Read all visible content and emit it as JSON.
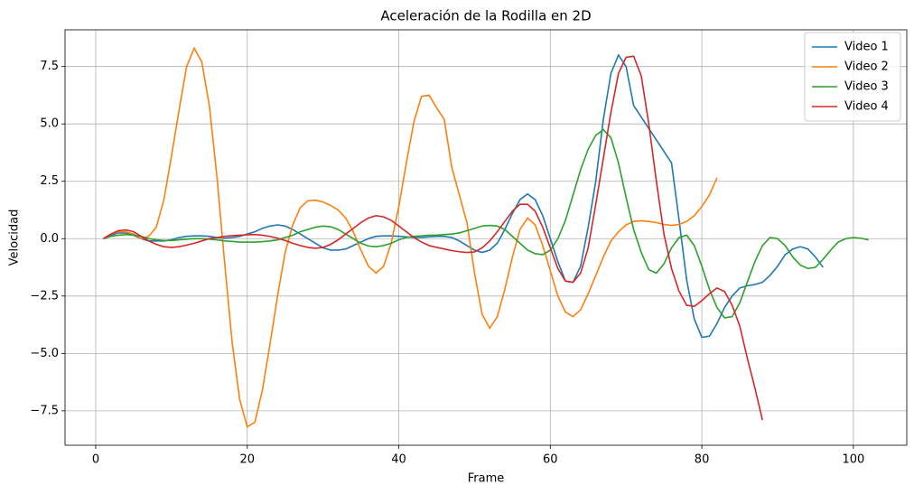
{
  "chart_data": {
    "type": "line",
    "title": "Aceleración de la Rodilla en 2D",
    "x_label": "Frame",
    "y_label": "Velocidad",
    "xlim": [
      -4.05,
      107.05
    ],
    "ylim": [
      -9.0,
      9.1
    ],
    "xticks": [
      0,
      20,
      40,
      60,
      80,
      100
    ],
    "yticks": [
      {
        "value": -7.5,
        "label": "−7.5"
      },
      {
        "value": -5,
        "label": "−5.0"
      },
      {
        "value": -2.5,
        "label": "−2.5"
      },
      {
        "value": 0,
        "label": "0.0"
      },
      {
        "value": 2.5,
        "label": "2.5"
      },
      {
        "value": 5,
        "label": "5.0"
      },
      {
        "value": 7.5,
        "label": "7.5"
      }
    ],
    "grid": true,
    "legend": "upper right",
    "series": [
      {
        "name": "Video 1",
        "color": "#1f77b4",
        "x": [
          1,
          2,
          3,
          4,
          5,
          6,
          7,
          8,
          9,
          10,
          11,
          12,
          13,
          14,
          15,
          16,
          17,
          18,
          19,
          20,
          21,
          22,
          23,
          24,
          25,
          26,
          27,
          28,
          29,
          30,
          31,
          32,
          33,
          34,
          35,
          36,
          37,
          38,
          39,
          40,
          41,
          42,
          43,
          44,
          45,
          46,
          47,
          48,
          49,
          50,
          51,
          52,
          53,
          54,
          55,
          56,
          57,
          58,
          59,
          60,
          61,
          62,
          63,
          64,
          65,
          66,
          67,
          68,
          69,
          70,
          71,
          72,
          73,
          74,
          75,
          76,
          77,
          78,
          79,
          80,
          81,
          82,
          83,
          84,
          85,
          86,
          87,
          88,
          89,
          90,
          91,
          92,
          93,
          94,
          95,
          96
        ],
        "values": [
          0,
          0.15,
          0.25,
          0.25,
          0.15,
          0,
          -0.1,
          -0.1,
          -0.1,
          -0.05,
          0.05,
          0.1,
          0.12,
          0.12,
          0.1,
          0.05,
          0.02,
          0.05,
          0.1,
          0.2,
          0.3,
          0.45,
          0.55,
          0.6,
          0.55,
          0.4,
          0.2,
          0,
          -0.2,
          -0.4,
          -0.5,
          -0.5,
          -0.45,
          -0.3,
          -0.15,
          0,
          0.1,
          0.12,
          0.12,
          0.1,
          0.08,
          0.05,
          0.05,
          0.08,
          0.1,
          0.1,
          0.05,
          -0.1,
          -0.3,
          -0.5,
          -0.6,
          -0.5,
          -0.2,
          0.4,
          1.1,
          1.7,
          1.95,
          1.7,
          1.0,
          0,
          -1.0,
          -1.85,
          -1.9,
          -1.2,
          0.5,
          2.5,
          5.2,
          7.2,
          8.0,
          7.5,
          5.8,
          5.3,
          4.8,
          4.3,
          3.8,
          3.3,
          0.8,
          -1.8,
          -3.5,
          -4.3,
          -4.25,
          -3.7,
          -3.0,
          -2.5,
          -2.15,
          -2.05,
          -2.0,
          -1.9,
          -1.6,
          -1.2,
          -0.7,
          -0.45,
          -0.35,
          -0.45,
          -0.8,
          -1.25
        ]
      },
      {
        "name": "Video 2",
        "color": "#ff7f0e",
        "x": [
          1,
          2,
          3,
          4,
          5,
          6,
          7,
          8,
          9,
          10,
          11,
          12,
          13,
          14,
          15,
          16,
          17,
          18,
          19,
          20,
          21,
          22,
          23,
          24,
          25,
          26,
          27,
          28,
          29,
          30,
          31,
          32,
          33,
          34,
          35,
          36,
          37,
          38,
          39,
          40,
          41,
          42,
          43,
          44,
          45,
          46,
          47,
          48,
          49,
          50,
          51,
          52,
          53,
          54,
          55,
          56,
          57,
          58,
          59,
          60,
          61,
          62,
          63,
          64,
          65,
          66,
          67,
          68,
          69,
          70,
          71,
          72,
          73,
          74,
          75,
          76,
          77,
          78,
          79,
          80,
          81,
          82
        ],
        "values": [
          0,
          0.2,
          0.3,
          0.3,
          0.2,
          0,
          0.1,
          0.5,
          1.7,
          3.6,
          5.6,
          7.5,
          8.3,
          7.7,
          5.8,
          2.7,
          -1,
          -4.5,
          -7,
          -8.2,
          -8,
          -6.6,
          -4.6,
          -2.5,
          -0.6,
          0.6,
          1.35,
          1.65,
          1.68,
          1.6,
          1.45,
          1.25,
          0.9,
          0.3,
          -0.5,
          -1.2,
          -1.5,
          -1.2,
          -0.2,
          1.4,
          3.3,
          5.1,
          6.2,
          6.25,
          5.7,
          5.2,
          3.1,
          1.9,
          0.7,
          -1.5,
          -3.3,
          -3.9,
          -3.4,
          -2.2,
          -0.8,
          0.4,
          0.9,
          0.6,
          -0.3,
          -1.4,
          -2.5,
          -3.2,
          -3.4,
          -3.1,
          -2.4,
          -1.6,
          -0.8,
          -0.1,
          0.3,
          0.6,
          0.75,
          0.78,
          0.75,
          0.7,
          0.62,
          0.58,
          0.62,
          0.75,
          1.0,
          1.4,
          1.9,
          2.65
        ]
      },
      {
        "name": "Video 3",
        "color": "#2ca02c",
        "x": [
          1,
          2,
          3,
          4,
          5,
          6,
          7,
          8,
          9,
          10,
          11,
          12,
          13,
          14,
          15,
          16,
          17,
          18,
          19,
          20,
          21,
          22,
          23,
          24,
          25,
          26,
          27,
          28,
          29,
          30,
          31,
          32,
          33,
          34,
          35,
          36,
          37,
          38,
          39,
          40,
          41,
          42,
          43,
          44,
          45,
          46,
          47,
          48,
          49,
          50,
          51,
          52,
          53,
          54,
          55,
          56,
          57,
          58,
          59,
          60,
          61,
          62,
          63,
          64,
          65,
          66,
          67,
          68,
          69,
          70,
          71,
          72,
          73,
          74,
          75,
          76,
          77,
          78,
          79,
          80,
          81,
          82,
          83,
          84,
          85,
          86,
          87,
          88,
          89,
          90,
          91,
          92,
          93,
          94,
          95,
          96,
          97,
          98,
          99,
          100,
          101,
          102
        ],
        "values": [
          0,
          0.1,
          0.15,
          0.18,
          0.15,
          0.1,
          0,
          -0.05,
          -0.08,
          -0.08,
          -0.05,
          -0.02,
          0,
          0,
          -0.02,
          -0.05,
          -0.1,
          -0.12,
          -0.15,
          -0.15,
          -0.15,
          -0.13,
          -0.1,
          -0.05,
          0.05,
          0.15,
          0.3,
          0.4,
          0.5,
          0.55,
          0.52,
          0.4,
          0.2,
          0,
          -0.2,
          -0.32,
          -0.35,
          -0.3,
          -0.2,
          -0.05,
          0.05,
          0.1,
          0.12,
          0.15,
          0.15,
          0.18,
          0.2,
          0.25,
          0.35,
          0.45,
          0.55,
          0.58,
          0.55,
          0.4,
          0.1,
          -0.2,
          -0.5,
          -0.65,
          -0.7,
          -0.5,
          0,
          0.8,
          1.9,
          3.0,
          3.9,
          4.5,
          4.75,
          4.4,
          3.3,
          1.8,
          0.4,
          -0.6,
          -1.35,
          -1.5,
          -1.1,
          -0.4,
          0.05,
          0.15,
          -0.3,
          -1.2,
          -2.2,
          -3.0,
          -3.45,
          -3.4,
          -2.8,
          -1.9,
          -1.0,
          -0.3,
          0.05,
          0,
          -0.3,
          -0.8,
          -1.15,
          -1.3,
          -1.25,
          -0.9,
          -0.5,
          -0.15,
          0,
          0.05,
          0.02,
          -0.05
        ]
      },
      {
        "name": "Video 4",
        "color": "#d62728",
        "x": [
          1,
          2,
          3,
          4,
          5,
          6,
          7,
          8,
          9,
          10,
          11,
          12,
          13,
          14,
          15,
          16,
          17,
          18,
          19,
          20,
          21,
          22,
          23,
          24,
          25,
          26,
          27,
          28,
          29,
          30,
          31,
          32,
          33,
          34,
          35,
          36,
          37,
          38,
          39,
          40,
          41,
          42,
          43,
          44,
          45,
          46,
          47,
          48,
          49,
          50,
          51,
          52,
          53,
          54,
          55,
          56,
          57,
          58,
          59,
          60,
          61,
          62,
          63,
          64,
          65,
          66,
          67,
          68,
          69,
          70,
          71,
          72,
          73,
          74,
          75,
          76,
          77,
          78,
          79,
          80,
          81,
          82,
          83,
          84,
          85,
          86,
          87,
          88
        ],
        "values": [
          0,
          0.2,
          0.35,
          0.38,
          0.3,
          0.1,
          -0.1,
          -0.25,
          -0.35,
          -0.38,
          -0.35,
          -0.28,
          -0.2,
          -0.1,
          0,
          0.05,
          0.1,
          0.13,
          0.15,
          0.17,
          0.18,
          0.15,
          0.1,
          0.02,
          -0.08,
          -0.2,
          -0.3,
          -0.38,
          -0.42,
          -0.38,
          -0.25,
          -0.05,
          0.2,
          0.45,
          0.7,
          0.9,
          1.0,
          0.95,
          0.8,
          0.55,
          0.3,
          0.05,
          -0.15,
          -0.3,
          -0.38,
          -0.45,
          -0.52,
          -0.57,
          -0.6,
          -0.58,
          -0.4,
          -0.1,
          0.3,
          0.75,
          1.2,
          1.5,
          1.5,
          1.2,
          0.5,
          -0.4,
          -1.3,
          -1.85,
          -1.9,
          -1.5,
          -0.4,
          1.5,
          3.5,
          5.5,
          7.2,
          7.9,
          7.95,
          7.1,
          5.0,
          2.5,
          0.2,
          -1.3,
          -2.3,
          -2.9,
          -2.95,
          -2.7,
          -2.4,
          -2.15,
          -2.3,
          -2.9,
          -3.8,
          -5.2,
          -6.5,
          -7.9
        ]
      }
    ]
  }
}
